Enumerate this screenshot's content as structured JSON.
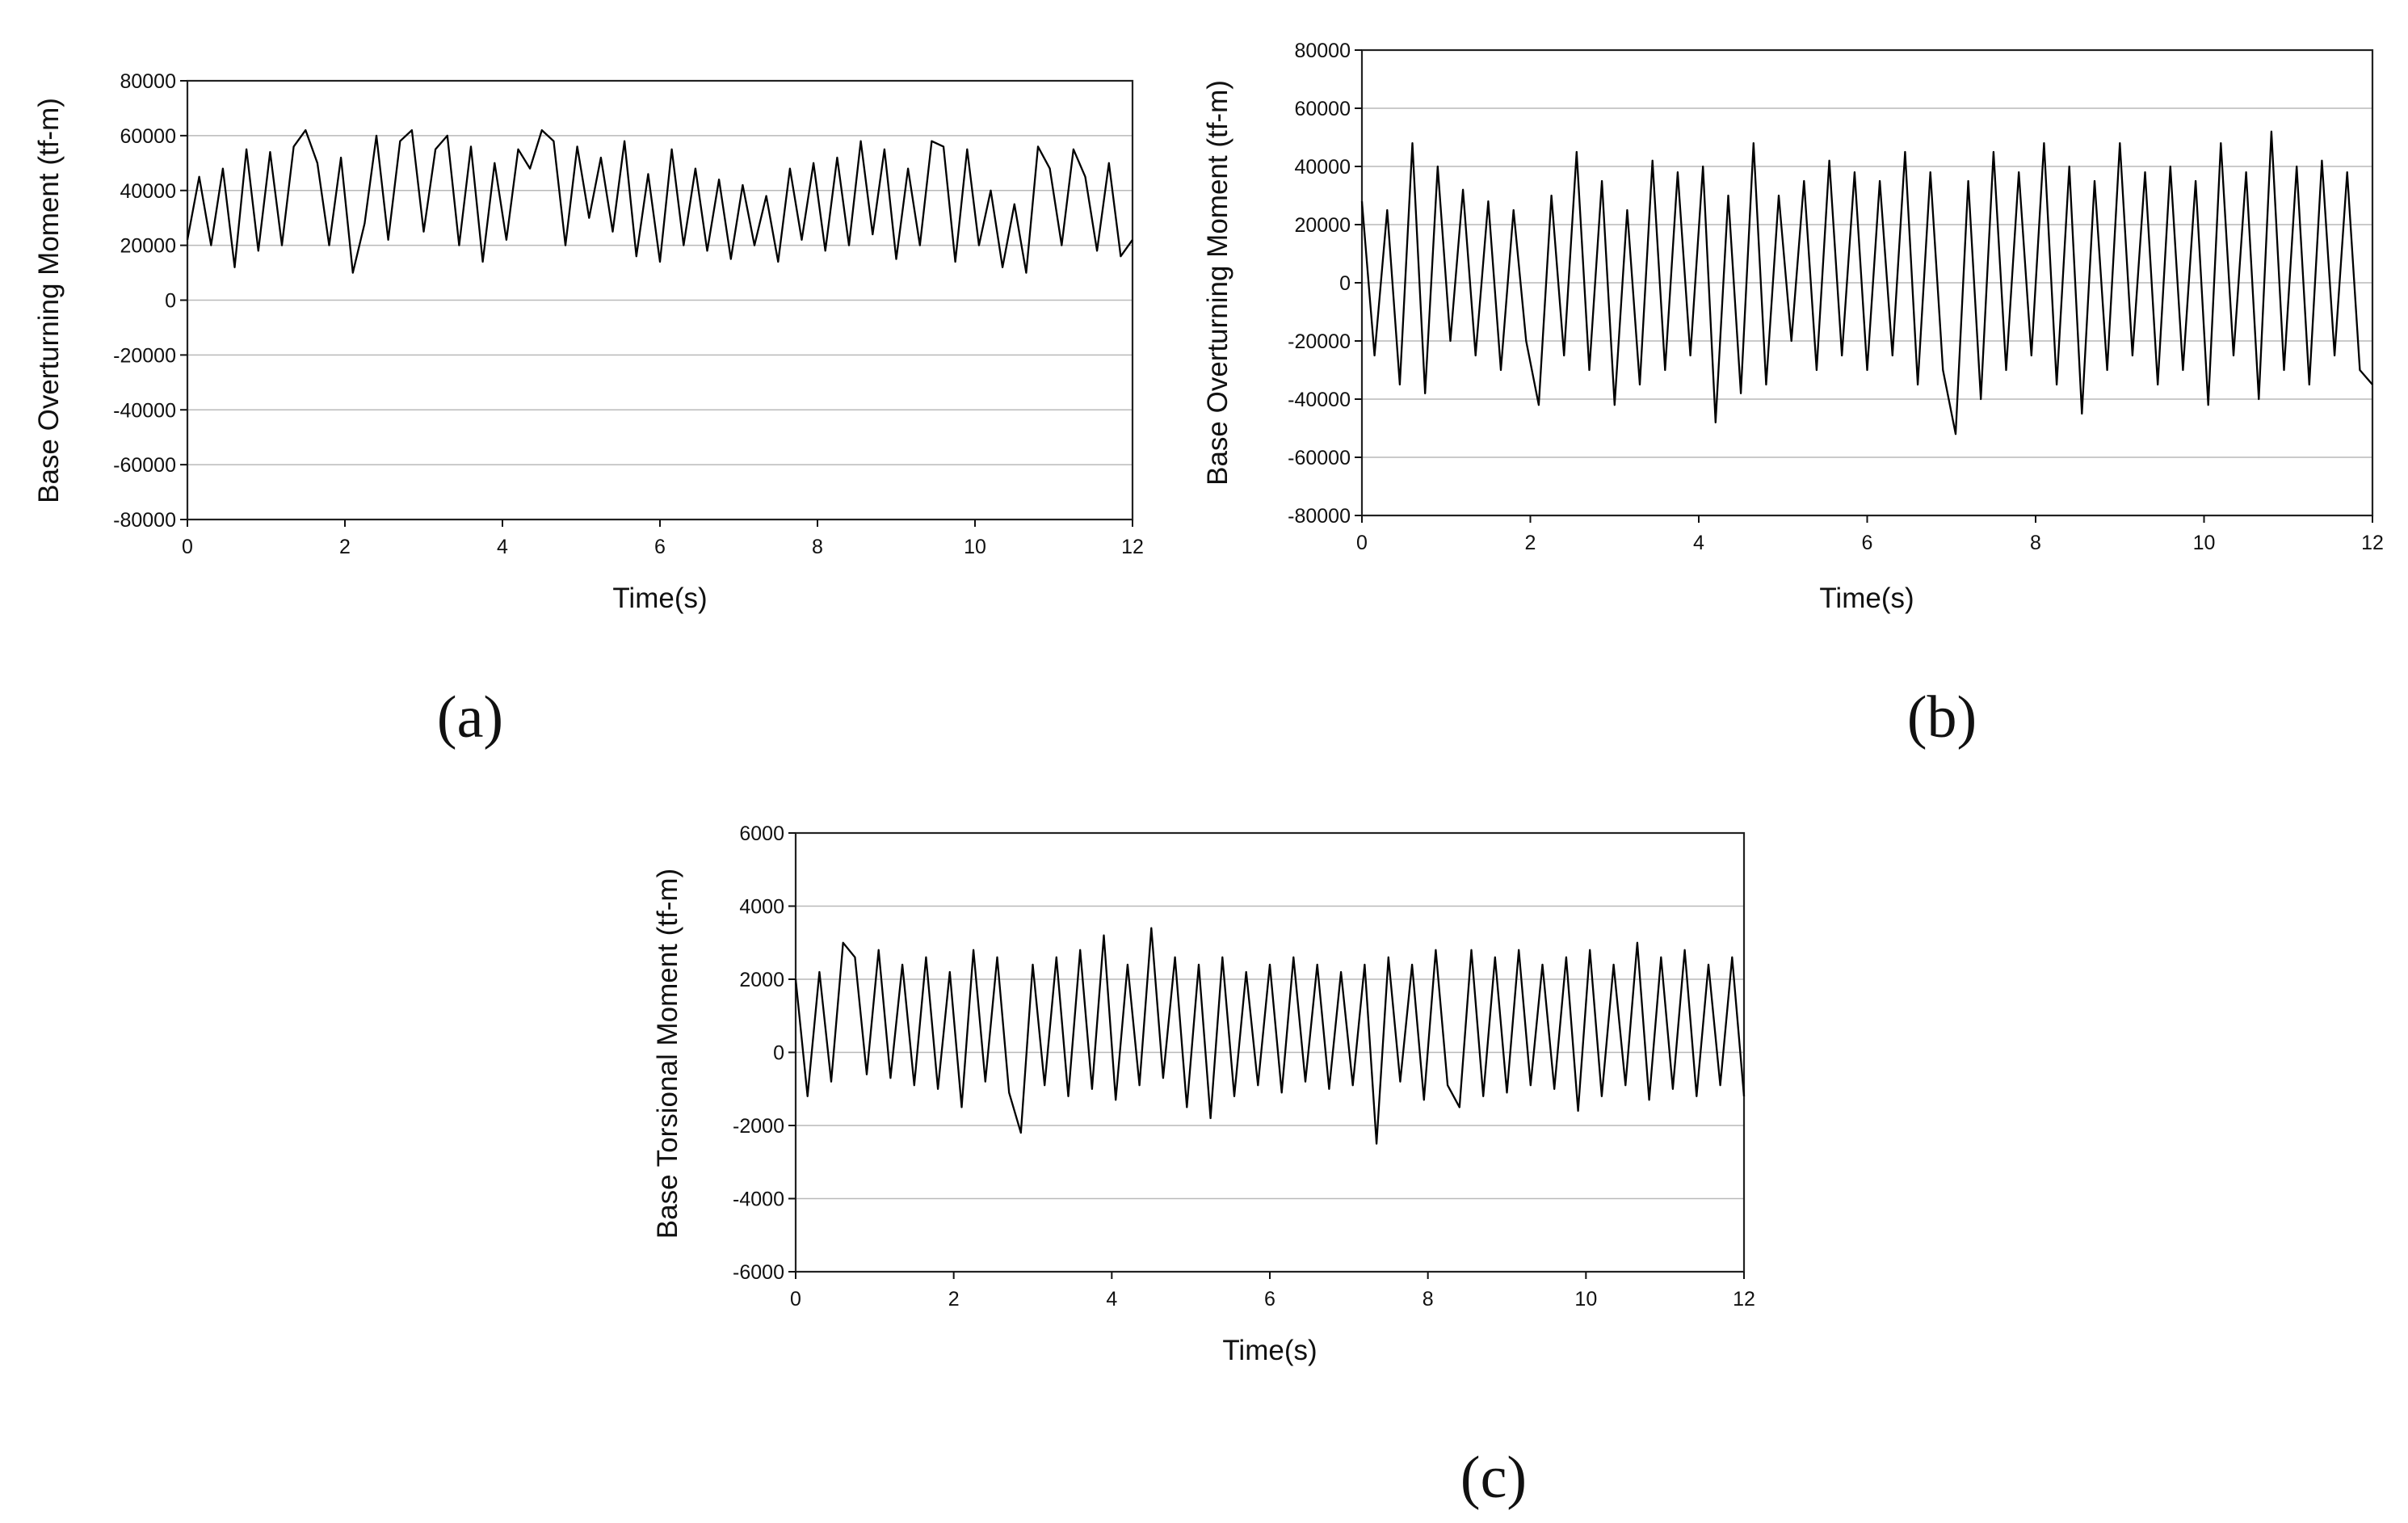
{
  "chart_data": [
    {
      "type": "line",
      "panel_label": "(a)",
      "xlabel": "Time(s)",
      "ylabel": "Base Overturning Moment  (tf-m)",
      "xlim": [
        0,
        12
      ],
      "ylim": [
        -80000,
        80000
      ],
      "xticks": [
        0,
        2,
        4,
        6,
        8,
        10,
        12
      ],
      "yticks": [
        80000,
        60000,
        40000,
        20000,
        0,
        -20000,
        -40000,
        -60000,
        -80000
      ],
      "grid": "horizontal",
      "series": [
        {
          "x": [
            0,
            0.15,
            0.3,
            0.45,
            0.6,
            0.75,
            0.9,
            1.05,
            1.2,
            1.35,
            1.5,
            1.65,
            1.8,
            1.95,
            2.1,
            2.25,
            2.4,
            2.55,
            2.7,
            2.85,
            3.0,
            3.15,
            3.3,
            3.45,
            3.6,
            3.75,
            3.9,
            4.05,
            4.2,
            4.35,
            4.5,
            4.65,
            4.8,
            4.95,
            5.1,
            5.25,
            5.4,
            5.55,
            5.7,
            5.85,
            6.0,
            6.15,
            6.3,
            6.45,
            6.6,
            6.75,
            6.9,
            7.05,
            7.2,
            7.35,
            7.5,
            7.65,
            7.8,
            7.95,
            8.1,
            8.25,
            8.4,
            8.55,
            8.7,
            8.85,
            9.0,
            9.15,
            9.3,
            9.45,
            9.6,
            9.75,
            9.9,
            10.05,
            10.2,
            10.35,
            10.5,
            10.65,
            10.8,
            10.95,
            11.1,
            11.25,
            11.4,
            11.55,
            11.7,
            11.85,
            12.0
          ],
          "y": [
            22000,
            45000,
            20000,
            48000,
            12000,
            55000,
            18000,
            54000,
            20000,
            56000,
            62000,
            50000,
            20000,
            52000,
            10000,
            28000,
            60000,
            22000,
            58000,
            62000,
            25000,
            55000,
            60000,
            20000,
            56000,
            14000,
            50000,
            22000,
            55000,
            48000,
            62000,
            58000,
            20000,
            56000,
            30000,
            52000,
            25000,
            58000,
            16000,
            46000,
            14000,
            55000,
            20000,
            48000,
            18000,
            44000,
            15000,
            42000,
            20000,
            38000,
            14000,
            48000,
            22000,
            50000,
            18000,
            52000,
            20000,
            58000,
            24000,
            55000,
            15000,
            48000,
            20000,
            58000,
            56000,
            14000,
            55000,
            20000,
            40000,
            12000,
            35000,
            10000,
            56000,
            48000,
            20000,
            55000,
            45000,
            18000,
            50000,
            16000,
            22000
          ]
        }
      ]
    },
    {
      "type": "line",
      "panel_label": "(b)",
      "xlabel": "Time(s)",
      "ylabel": "Base Overturning Moment  (tf-m)",
      "xlim": [
        0,
        12
      ],
      "ylim": [
        -80000,
        80000
      ],
      "xticks": [
        0,
        2,
        4,
        6,
        8,
        10,
        12
      ],
      "yticks": [
        80000,
        60000,
        40000,
        20000,
        0,
        -20000,
        -40000,
        -60000,
        -80000
      ],
      "grid": "horizontal",
      "series": [
        {
          "x": [
            0,
            0.15,
            0.3,
            0.45,
            0.6,
            0.75,
            0.9,
            1.05,
            1.2,
            1.35,
            1.5,
            1.65,
            1.8,
            1.95,
            2.1,
            2.25,
            2.4,
            2.55,
            2.7,
            2.85,
            3.0,
            3.15,
            3.3,
            3.45,
            3.6,
            3.75,
            3.9,
            4.05,
            4.2,
            4.35,
            4.5,
            4.65,
            4.8,
            4.95,
            5.1,
            5.25,
            5.4,
            5.55,
            5.7,
            5.85,
            6.0,
            6.15,
            6.3,
            6.45,
            6.6,
            6.75,
            6.9,
            7.05,
            7.2,
            7.35,
            7.5,
            7.65,
            7.8,
            7.95,
            8.1,
            8.25,
            8.4,
            8.55,
            8.7,
            8.85,
            9.0,
            9.15,
            9.3,
            9.45,
            9.6,
            9.75,
            9.9,
            10.05,
            10.2,
            10.35,
            10.5,
            10.65,
            10.8,
            10.95,
            11.1,
            11.25,
            11.4,
            11.55,
            11.7,
            11.85,
            12.0
          ],
          "y": [
            28000,
            -25000,
            25000,
            -35000,
            48000,
            -38000,
            40000,
            -20000,
            32000,
            -25000,
            28000,
            -30000,
            25000,
            -20000,
            -42000,
            30000,
            -25000,
            45000,
            -30000,
            35000,
            -42000,
            25000,
            -35000,
            42000,
            -30000,
            38000,
            -25000,
            40000,
            -48000,
            30000,
            -38000,
            48000,
            -35000,
            30000,
            -20000,
            35000,
            -30000,
            42000,
            -25000,
            38000,
            -30000,
            35000,
            -25000,
            45000,
            -35000,
            38000,
            -30000,
            -52000,
            35000,
            -40000,
            45000,
            -30000,
            38000,
            -25000,
            48000,
            -35000,
            40000,
            -45000,
            35000,
            -30000,
            48000,
            -25000,
            38000,
            -35000,
            40000,
            -30000,
            35000,
            -42000,
            48000,
            -25000,
            38000,
            -40000,
            52000,
            -30000,
            40000,
            -35000,
            42000,
            -25000,
            38000,
            -30000,
            -35000
          ]
        }
      ]
    },
    {
      "type": "line",
      "panel_label": "(c)",
      "xlabel": "Time(s)",
      "ylabel": "Base Torsional Moment  (tf-m)",
      "xlim": [
        0,
        12
      ],
      "ylim": [
        -6000,
        6000
      ],
      "xticks": [
        0,
        2,
        4,
        6,
        8,
        10,
        12
      ],
      "yticks": [
        6000,
        4000,
        2000,
        0,
        -2000,
        -4000,
        -6000
      ],
      "grid": "horizontal",
      "series": [
        {
          "x": [
            0,
            0.15,
            0.3,
            0.45,
            0.6,
            0.75,
            0.9,
            1.05,
            1.2,
            1.35,
            1.5,
            1.65,
            1.8,
            1.95,
            2.1,
            2.25,
            2.4,
            2.55,
            2.7,
            2.85,
            3.0,
            3.15,
            3.3,
            3.45,
            3.6,
            3.75,
            3.9,
            4.05,
            4.2,
            4.35,
            4.5,
            4.65,
            4.8,
            4.95,
            5.1,
            5.25,
            5.4,
            5.55,
            5.7,
            5.85,
            6.0,
            6.15,
            6.3,
            6.45,
            6.6,
            6.75,
            6.9,
            7.05,
            7.2,
            7.35,
            7.5,
            7.65,
            7.8,
            7.95,
            8.1,
            8.25,
            8.4,
            8.55,
            8.7,
            8.85,
            9.0,
            9.15,
            9.3,
            9.45,
            9.6,
            9.75,
            9.9,
            10.05,
            10.2,
            10.35,
            10.5,
            10.65,
            10.8,
            10.95,
            11.1,
            11.25,
            11.4,
            11.55,
            11.7,
            11.85,
            12.0
          ],
          "y": [
            2000,
            -1200,
            2200,
            -800,
            3000,
            2600,
            -600,
            2800,
            -700,
            2400,
            -900,
            2600,
            -1000,
            2200,
            -1500,
            2800,
            -800,
            2600,
            -1100,
            -2200,
            2400,
            -900,
            2600,
            -1200,
            2800,
            -1000,
            3200,
            -1300,
            2400,
            -900,
            3400,
            -700,
            2600,
            -1500,
            2400,
            -1800,
            2600,
            -1200,
            2200,
            -900,
            2400,
            -1100,
            2600,
            -800,
            2400,
            -1000,
            2200,
            -900,
            2400,
            -2500,
            2600,
            -800,
            2400,
            -1300,
            2800,
            -900,
            -1500,
            2800,
            -1200,
            2600,
            -1100,
            2800,
            -900,
            2400,
            -1000,
            2600,
            -1600,
            2800,
            -1200,
            2400,
            -900,
            3000,
            -1300,
            2600,
            -1000,
            2800,
            -1200,
            2400,
            -900,
            2600,
            -1200
          ]
        }
      ]
    }
  ]
}
